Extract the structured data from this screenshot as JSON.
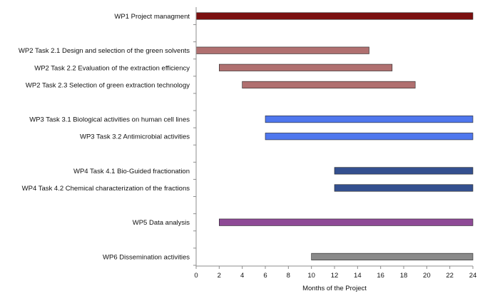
{
  "chart_data": {
    "type": "bar",
    "orientation": "horizontal-gantt",
    "title": "",
    "xlabel": "Months of the Project",
    "ylabel": "",
    "xlim": [
      0,
      24
    ],
    "xticks": [
      "0",
      "2",
      "4",
      "6",
      "8",
      "10",
      "12",
      "14",
      "16",
      "18",
      "20",
      "22",
      "24"
    ],
    "grid": false,
    "tasks": [
      {
        "label": "WP1 Project managment",
        "start": 0,
        "end": 24,
        "color": "#7b1010",
        "row": 0
      },
      {
        "label": "WP2 Task 2.1  Design and selection of the green solvents",
        "start": 0,
        "end": 15,
        "color": "#b07070",
        "row": 2
      },
      {
        "label": "WP2 Task 2.2  Evaluation of the extraction efficiency",
        "start": 2,
        "end": 17,
        "color": "#b07070",
        "row": 3
      },
      {
        "label": "WP2 Task 2.3 Selection of green extraction technology",
        "start": 4,
        "end": 19,
        "color": "#b07070",
        "row": 4
      },
      {
        "label": "WP3 Task 3.1 Biological activities on human cell lines",
        "start": 6,
        "end": 24,
        "color": "#4f77ee",
        "row": 6
      },
      {
        "label": "WP3 Task 3.2 Antimicrobial activities",
        "start": 6,
        "end": 24,
        "color": "#4f77ee",
        "row": 7
      },
      {
        "label": "WP4 Task 4.1 Bio-Guided fractionation",
        "start": 12,
        "end": 24,
        "color": "#34508f",
        "row": 9
      },
      {
        "label": "WP4 Task 4.2 Chemical characterization of the fractions",
        "start": 12,
        "end": 24,
        "color": "#34508f",
        "row": 10
      },
      {
        "label": "WP5 Data analysis",
        "start": 2,
        "end": 24,
        "color": "#8e4a96",
        "row": 12
      },
      {
        "label": "WP6 Dissemination activities",
        "start": 10,
        "end": 24,
        "color": "#8a8a8a",
        "row": 14
      }
    ]
  }
}
